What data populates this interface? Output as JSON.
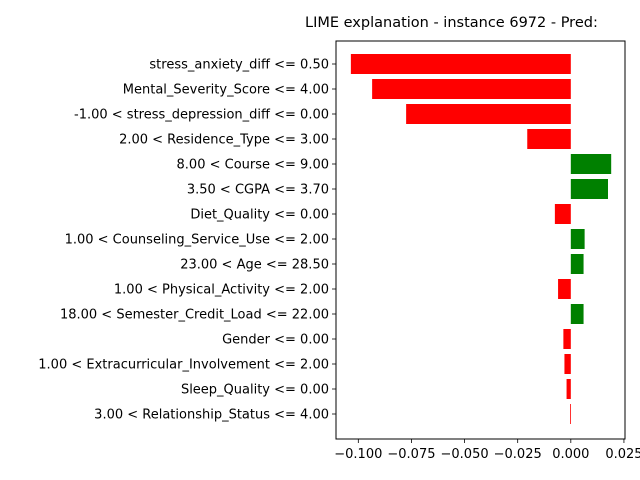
{
  "chart_data": {
    "type": "bar",
    "orientation": "horizontal",
    "title": "LIME explanation - instance 6972 - Pred:",
    "xlabel": "",
    "ylabel": "",
    "xlim": [
      -0.1105,
      0.0255
    ],
    "xticks": [
      -0.1,
      -0.075,
      -0.05,
      -0.025,
      0.0,
      0.025
    ],
    "xtick_labels": [
      "−0.100",
      "−0.075",
      "−0.050",
      "−0.025",
      "0.000",
      "0.025"
    ],
    "grid": false,
    "positive_color": "#008000",
    "negative_color": "#ff0000",
    "categories": [
      "stress_anxiety_diff <= 0.50",
      "Mental_Severity_Score <= 4.00",
      "-1.00 < stress_depression_diff <= 0.00",
      "2.00 < Residence_Type <= 3.00",
      "8.00 < Course <= 9.00",
      "3.50 < CGPA <= 3.70",
      "Diet_Quality <= 0.00",
      "1.00 < Counseling_Service_Use <= 2.00",
      "23.00 < Age <= 28.50",
      "1.00 < Physical_Activity <= 2.00",
      "18.00 < Semester_Credit_Load <= 22.00",
      "Gender <= 0.00",
      "1.00 < Extracurricular_Involvement <= 2.00",
      "Sleep_Quality <= 0.00",
      "3.00 < Relationship_Status <= 4.00"
    ],
    "values": [
      -0.1035,
      -0.0935,
      -0.0775,
      -0.0205,
      0.019,
      0.0175,
      -0.0075,
      0.0065,
      0.006,
      -0.006,
      0.006,
      -0.0035,
      -0.003,
      -0.002,
      -0.0003
    ]
  }
}
